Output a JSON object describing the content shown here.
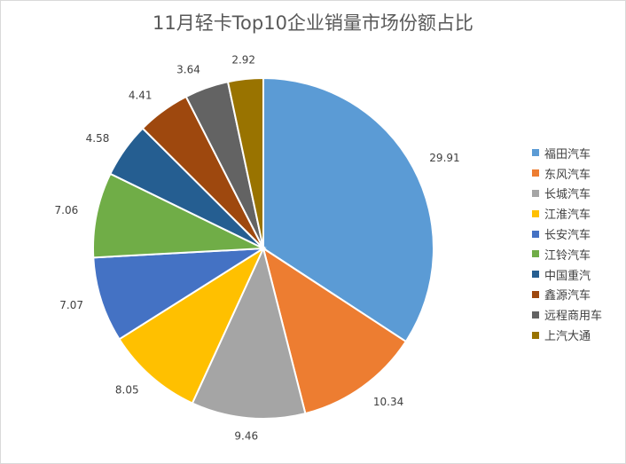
{
  "chart_data": {
    "type": "pie",
    "title": "11月轻卡Top10企业销量市场份额占比",
    "categories": [
      "福田汽车",
      "东风汽车",
      "长城汽车",
      "江淮汽车",
      "长安汽车",
      "江铃汽车",
      "中国重汽",
      "鑫源汽车",
      "远程商用车",
      "上汽大通"
    ],
    "values": [
      29.91,
      10.34,
      9.46,
      8.05,
      7.07,
      7.06,
      4.58,
      4.41,
      3.64,
      2.92
    ],
    "value_labels": [
      "29.91",
      "10.34",
      "9.46",
      "8.05",
      "7.07",
      "7.06",
      "4.58",
      "4.41",
      "3.64",
      "2.92"
    ],
    "colors": [
      "#5b9bd5",
      "#ed7d31",
      "#a5a5a5",
      "#ffc000",
      "#4472c4",
      "#70ad47",
      "#255e91",
      "#9e480e",
      "#636363",
      "#997300"
    ],
    "legend_position": "right"
  }
}
